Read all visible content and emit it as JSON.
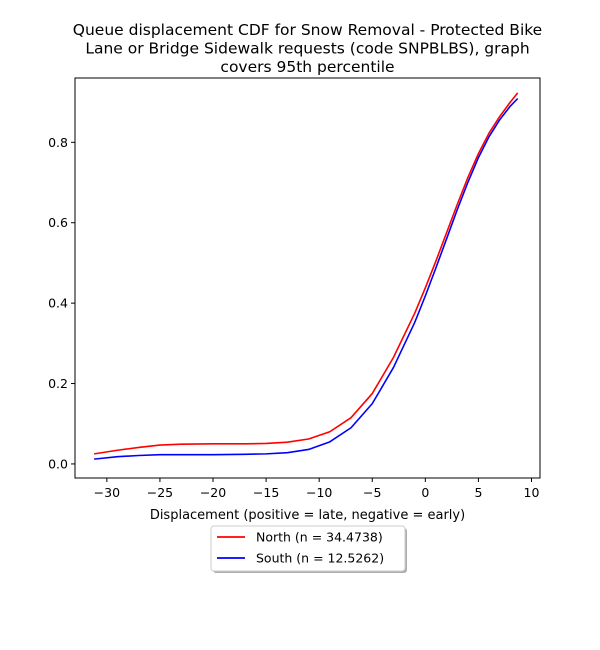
{
  "chart_data": {
    "type": "line",
    "title_lines": [
      "Queue displacement CDF for Snow Removal - Protected Bike",
      "Lane or Bridge Sidewalk  requests (code SNPBLBS), graph",
      "covers 95th percentile"
    ],
    "xlabel": "Displacement (positive = late, negative = early)",
    "ylabel": "",
    "xlim": [
      -33.0,
      10.8
    ],
    "ylim": [
      -0.035,
      0.96
    ],
    "xticks": [
      -30,
      -25,
      -20,
      -15,
      -10,
      -5,
      0,
      5,
      10
    ],
    "yticks": [
      0.0,
      0.2,
      0.4,
      0.6,
      0.8
    ],
    "legend_position": "below-center",
    "series": [
      {
        "name": "North (n = 34.4738)",
        "color": "#ff0000",
        "x": [
          -31.2,
          -29,
          -27,
          -25,
          -23,
          -20,
          -17,
          -15,
          -13,
          -11,
          -9,
          -7,
          -5,
          -3,
          -1,
          0,
          1,
          2,
          3,
          4,
          5,
          6,
          7,
          8,
          8.7
        ],
        "y": [
          0.025,
          0.034,
          0.041,
          0.047,
          0.049,
          0.05,
          0.05,
          0.051,
          0.054,
          0.062,
          0.08,
          0.115,
          0.175,
          0.265,
          0.375,
          0.438,
          0.505,
          0.575,
          0.645,
          0.712,
          0.772,
          0.823,
          0.864,
          0.9,
          0.923
        ]
      },
      {
        "name": "South (n = 12.5262)",
        "color": "#0000ff",
        "x": [
          -31.2,
          -29,
          -27,
          -25,
          -23,
          -20,
          -17,
          -15,
          -13,
          -11,
          -9,
          -7,
          -5,
          -3,
          -1,
          0,
          1,
          2,
          3,
          4,
          5,
          6,
          7,
          8,
          8.7
        ],
        "y": [
          0.012,
          0.018,
          0.021,
          0.023,
          0.023,
          0.023,
          0.024,
          0.025,
          0.028,
          0.036,
          0.055,
          0.09,
          0.15,
          0.24,
          0.352,
          0.418,
          0.488,
          0.56,
          0.632,
          0.7,
          0.762,
          0.814,
          0.856,
          0.89,
          0.909
        ]
      }
    ]
  }
}
